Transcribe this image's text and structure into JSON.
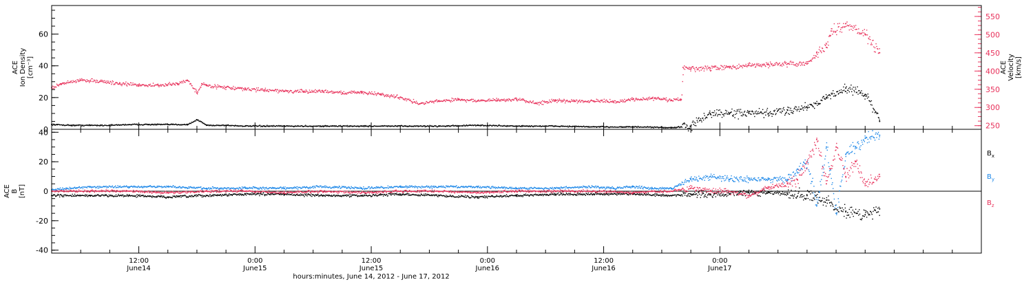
{
  "chart_data": [
    {
      "type": "scatter",
      "ylabel_lines": [
        "ACE",
        "Ion Density",
        "[cm⁻³]"
      ],
      "y2label_lines": [
        "ACE",
        "Velocity",
        "[km/s]"
      ],
      "ylim": [
        0,
        78
      ],
      "yticks": [
        0,
        20,
        40,
        60
      ],
      "y2lim": [
        240,
        580
      ],
      "y2ticks": [
        250,
        300,
        350,
        400,
        450,
        500,
        550
      ],
      "colors": {
        "density": "#000000",
        "velocity": "#e8305a"
      },
      "series": [
        {
          "key": "density",
          "axis": "left",
          "x": [
            0,
            2,
            4,
            6,
            8,
            10,
            12,
            14,
            15,
            16,
            18,
            20,
            22,
            24,
            28,
            32,
            36,
            40,
            44,
            48,
            52,
            56,
            60,
            64,
            66,
            68,
            70,
            72,
            74,
            76,
            78,
            80,
            82,
            84,
            85.5
          ],
          "y": [
            3,
            2.5,
            2.5,
            2.5,
            3,
            3,
            3,
            3,
            6,
            2.5,
            2.5,
            2,
            2,
            2,
            2,
            2,
            2,
            2,
            2.5,
            2,
            2,
            1.5,
            1.5,
            1,
            2,
            10,
            10,
            10,
            10,
            12,
            14,
            20,
            26,
            22,
            5
          ]
        },
        {
          "key": "velocity",
          "axis": "right",
          "x": [
            0,
            1,
            3,
            5,
            7,
            9,
            11,
            13,
            14,
            15,
            15.5,
            16,
            18,
            20,
            22,
            24,
            26,
            28,
            30,
            32,
            34,
            36,
            38,
            40,
            42,
            44,
            46,
            48,
            50,
            52,
            54,
            56,
            58,
            60,
            62,
            64,
            65,
            65.2,
            66,
            68,
            70,
            72,
            74,
            76,
            78,
            79,
            80,
            80.5,
            82,
            84,
            85.5
          ],
          "y": [
            355,
            365,
            375,
            372,
            365,
            362,
            360,
            365,
            375,
            340,
            365,
            360,
            355,
            350,
            348,
            345,
            343,
            345,
            340,
            342,
            335,
            328,
            310,
            318,
            322,
            318,
            320,
            322,
            312,
            318,
            318,
            318,
            315,
            322,
            325,
            320,
            322,
            410,
            405,
            408,
            410,
            415,
            418,
            420,
            420,
            450,
            465,
            510,
            530,
            500,
            450
          ]
        }
      ]
    },
    {
      "type": "scatter",
      "ylabel_lines": [
        "ACE",
        "B",
        "[nT]"
      ],
      "ylim": [
        -42,
        42
      ],
      "yticks": [
        -40,
        -20,
        0,
        20,
        40
      ],
      "colors": {
        "Bx": "#000000",
        "By": "#1a86e8",
        "Bz": "#e8305a"
      },
      "series": [
        {
          "key": "Bx",
          "label": "B",
          "sub": "x",
          "x": [
            0,
            4,
            8,
            12,
            16,
            20,
            24,
            28,
            32,
            36,
            40,
            44,
            48,
            52,
            56,
            60,
            64,
            66,
            68,
            70,
            72,
            74,
            76,
            78,
            80,
            81,
            82,
            84,
            85.5
          ],
          "y": [
            -3,
            -3,
            -3,
            -4,
            -3,
            -2,
            -2,
            -3,
            -3,
            -2,
            -3,
            -4,
            -3,
            -2,
            -2,
            -2,
            -3,
            -2,
            -2,
            -2,
            -1,
            -1,
            -2,
            -3,
            -6,
            -12,
            -14,
            -16,
            -12
          ]
        },
        {
          "key": "By",
          "label": "B",
          "sub": "y",
          "x": [
            0,
            4,
            8,
            12,
            16,
            20,
            24,
            28,
            32,
            36,
            40,
            44,
            48,
            52,
            56,
            58,
            60,
            62,
            64,
            66,
            68,
            70,
            72,
            74,
            76,
            77,
            78,
            79,
            80,
            81,
            82,
            83,
            84,
            85.5
          ],
          "y": [
            1,
            3,
            3,
            3,
            2,
            2,
            2,
            3,
            2,
            3,
            3,
            3,
            2,
            2,
            3,
            2,
            3,
            2,
            2,
            8,
            10,
            8,
            8,
            8,
            8,
            15,
            20,
            -10,
            30,
            -15,
            25,
            30,
            36,
            38
          ]
        },
        {
          "key": "Bz",
          "label": "B",
          "sub": "z",
          "x": [
            0,
            4,
            8,
            12,
            16,
            20,
            24,
            28,
            32,
            36,
            40,
            44,
            48,
            52,
            56,
            60,
            64,
            66,
            68,
            70,
            72,
            74,
            76,
            77,
            78,
            79,
            80,
            81,
            82,
            83,
            84,
            85.5
          ],
          "y": [
            0,
            0,
            0,
            -1,
            0,
            0,
            -1,
            0,
            -1,
            0,
            0,
            -1,
            0,
            0,
            0,
            -1,
            0,
            2,
            0,
            0,
            -3,
            3,
            5,
            8,
            20,
            35,
            5,
            30,
            10,
            20,
            5,
            10
          ]
        }
      ]
    }
  ],
  "x_axis": {
    "range_hours": [
      0,
      96
    ],
    "ticks": [
      {
        "h": 9,
        "label": "12:00",
        "date": "June14"
      },
      {
        "h": 21,
        "label": "0:00",
        "date": "June15"
      },
      {
        "h": 33,
        "label": "12:00",
        "date": "June15"
      },
      {
        "h": 45,
        "label": "0:00",
        "date": "June16"
      },
      {
        "h": 57,
        "label": "12:00",
        "date": "June16"
      },
      {
        "h": 69,
        "label": "0:00",
        "date": "June17"
      }
    ],
    "title": "hours:minutes, June 14, 2012 - June 17, 2012"
  }
}
